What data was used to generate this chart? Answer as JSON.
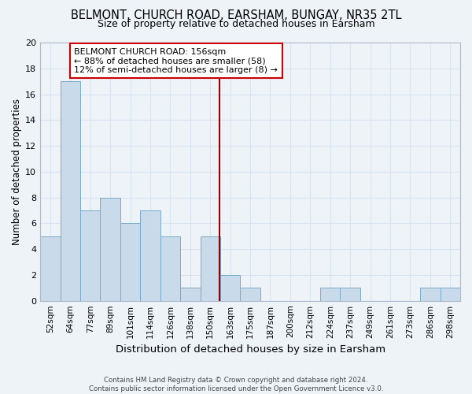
{
  "title": "BELMONT, CHURCH ROAD, EARSHAM, BUNGAY, NR35 2TL",
  "subtitle": "Size of property relative to detached houses in Earsham",
  "xlabel": "Distribution of detached houses by size in Earsham",
  "ylabel": "Number of detached properties",
  "bins": [
    "52sqm",
    "64sqm",
    "77sqm",
    "89sqm",
    "101sqm",
    "114sqm",
    "126sqm",
    "138sqm",
    "150sqm",
    "163sqm",
    "175sqm",
    "187sqm",
    "200sqm",
    "212sqm",
    "224sqm",
    "237sqm",
    "249sqm",
    "261sqm",
    "273sqm",
    "286sqm",
    "298sqm"
  ],
  "values": [
    5,
    17,
    7,
    8,
    6,
    7,
    5,
    1,
    5,
    2,
    1,
    0,
    0,
    0,
    1,
    1,
    0,
    0,
    0,
    1,
    1
  ],
  "bar_color": "#c9daea",
  "bar_edge_color": "#7aaac8",
  "grid_color": "#d8e4f0",
  "background_color": "#eef3f8",
  "property_line_color": "#990000",
  "annotation_title": "BELMONT CHURCH ROAD: 156sqm",
  "annotation_line1": "← 88% of detached houses are smaller (58)",
  "annotation_line2": "12% of semi-detached houses are larger (8) →",
  "annotation_box_color": "#ffffff",
  "annotation_border_color": "#cc0000",
  "ylim": [
    0,
    20
  ],
  "yticks": [
    0,
    2,
    4,
    6,
    8,
    10,
    12,
    14,
    16,
    18,
    20
  ],
  "title_fontsize": 10.5,
  "subtitle_fontsize": 9,
  "xlabel_fontsize": 9.5,
  "ylabel_fontsize": 8.5,
  "tick_fontsize": 7.5,
  "footer_line1": "Contains HM Land Registry data © Crown copyright and database right 2024.",
  "footer_line2": "Contains public sector information licensed under the Open Government Licence v3.0."
}
